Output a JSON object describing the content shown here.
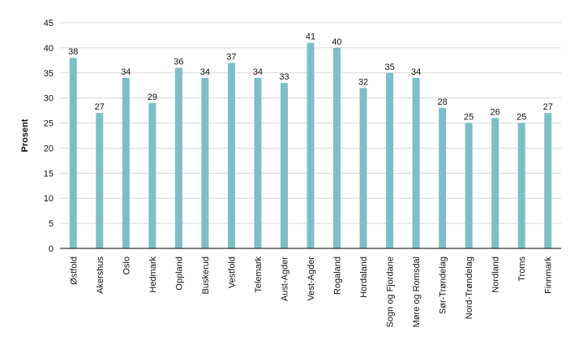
{
  "chart_data": {
    "type": "bar",
    "title": "",
    "xlabel": "",
    "ylabel": "Prosent",
    "ylim": [
      0,
      45
    ],
    "ytick_step": 5,
    "grid": true,
    "legend": "none",
    "bar_color": "#7dbfc9",
    "categories": [
      "Østfold",
      "Akershus",
      "Oslo",
      "Hedmark",
      "Oppland",
      "Buskerud",
      "Vestfold",
      "Telemark",
      "Aust-Agder",
      "Vest-Agder",
      "Rogaland",
      "Hordaland",
      "Sogn og Fjordane",
      "Møre og Romsdal",
      "Sør-Trøndelag",
      "Nord-Trøndelag",
      "Nordland",
      "Troms",
      "Finnmark"
    ],
    "values": [
      38,
      27,
      34,
      29,
      36,
      34,
      37,
      34,
      33,
      41,
      40,
      32,
      35,
      34,
      28,
      25,
      26,
      25,
      27
    ]
  }
}
